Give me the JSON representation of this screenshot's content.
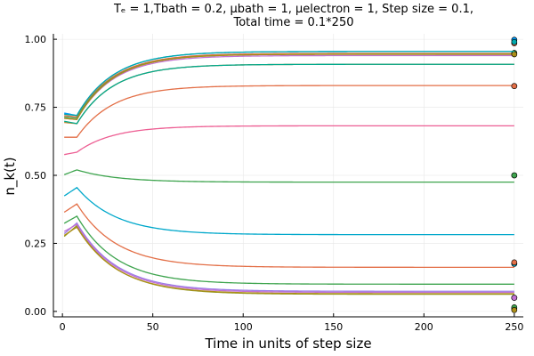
{
  "chart_data": {
    "type": "line",
    "title_line1": "Tₑ = 1,Tbath = 0.2, μbath = 1, μelectron = 1, Step size = 0.1,",
    "title_line2": "Total time = 0.1*250",
    "xlabel": "Time in units of step size",
    "ylabel": "n_k(t)",
    "xlim": [
      -5,
      255
    ],
    "ylim": [
      -0.02,
      1.02
    ],
    "xticks": [
      0,
      50,
      100,
      150,
      200,
      250
    ],
    "xtick_labels": [
      "0",
      "50",
      "100",
      "150",
      "200",
      "250"
    ],
    "yticks": [
      0.0,
      0.25,
      0.5,
      0.75,
      1.0
    ],
    "ytick_labels": [
      "0.00",
      "0.25",
      "0.50",
      "0.75",
      "1.00"
    ],
    "grid": true,
    "series": [
      {
        "color": "#009AFA",
        "start": 0.73,
        "dip": 0.72,
        "final": 0.955,
        "marker": 0.998
      },
      {
        "color": "#E36F47",
        "start": 0.72,
        "dip": 0.715,
        "final": 0.948,
        "marker": 0.985
      },
      {
        "color": "#3EA44E",
        "start": 0.715,
        "dip": 0.71,
        "final": 0.945,
        "marker": 0.95
      },
      {
        "color": "#C271D2",
        "start": 0.71,
        "dip": 0.705,
        "final": 0.94,
        "marker": 0.945
      },
      {
        "color": "#AC8E18",
        "start": 0.71,
        "dip": 0.705,
        "final": 0.945,
        "marker": 0.945
      },
      {
        "color": "#00A9AD",
        "start": 0.725,
        "dip": 0.72,
        "final": 0.955,
        "marker": 0.99
      },
      {
        "color": "#ED5E93",
        "start": 0.575,
        "dip": 0.585,
        "final": 0.682,
        "marker": 0.828
      },
      {
        "color": "#C68225",
        "start": 0.695,
        "dip": 0.69,
        "final": 0.908,
        "marker": 0.5
      },
      {
        "color": "#00A98D",
        "start": 0.7,
        "dip": 0.69,
        "final": 0.908,
        "marker": 0.175
      },
      {
        "color": "#8E971D",
        "start": 0.27,
        "peak": 0.315,
        "final": 0.063,
        "marker": 0.01
      },
      {
        "color": "#00A8CB",
        "start": 0.42,
        "peak": 0.455,
        "final": 0.282,
        "marker": 0.175
      },
      {
        "color": "#9B7FE8",
        "start": 0.28,
        "peak": 0.325,
        "final": 0.074,
        "marker": 0.05
      },
      {
        "color": "#E36F47",
        "start": 0.36,
        "peak": 0.395,
        "final": 0.162,
        "marker": 0.18
      },
      {
        "color": "#3EA44E",
        "start": 0.32,
        "peak": 0.35,
        "final": 0.1,
        "marker": 0.015
      },
      {
        "color": "#C271D2",
        "start": 0.29,
        "peak": 0.32,
        "final": 0.07,
        "marker": 0.05
      },
      {
        "color": "#E36F47",
        "start": 0.64,
        "dip": 0.64,
        "final": 0.83,
        "marker": 0.828
      },
      {
        "color": "#3EA44E",
        "start": 0.5,
        "peak": 0.52,
        "final": 0.475,
        "marker": 0.5
      },
      {
        "color": "#AC8E18",
        "start": 0.275,
        "peak": 0.31,
        "final": 0.065,
        "marker": 0.005
      }
    ]
  }
}
